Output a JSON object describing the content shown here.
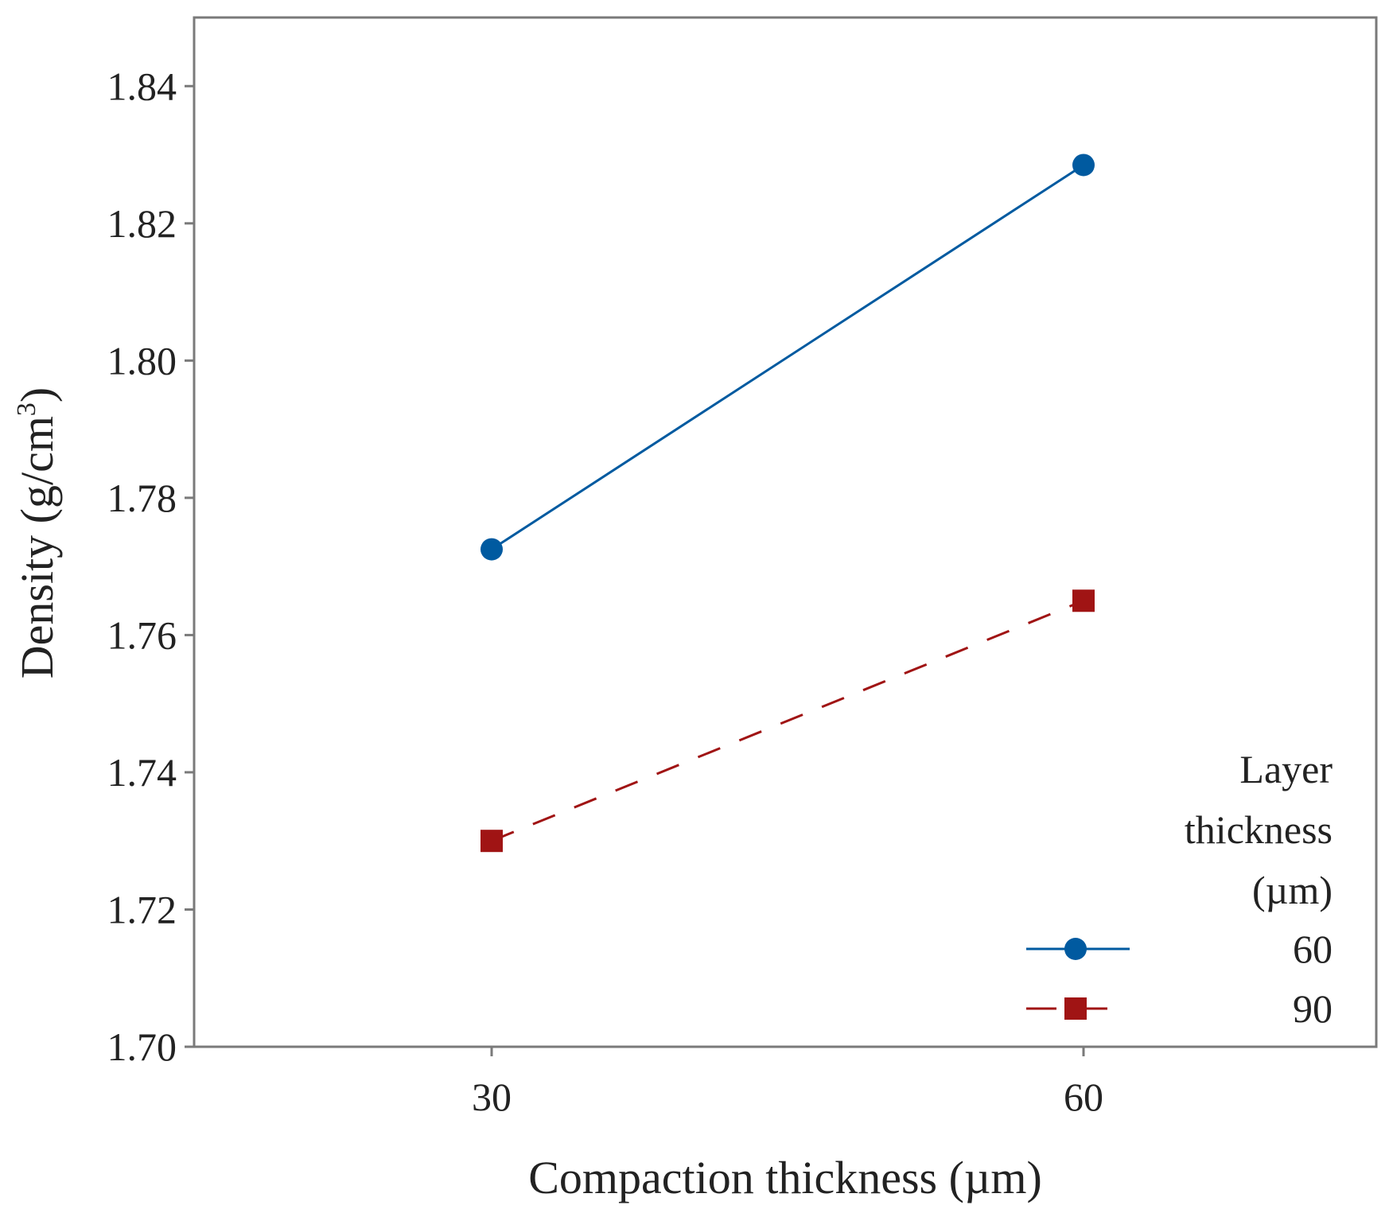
{
  "chart_data": {
    "type": "line",
    "title": "",
    "xlabel": "Compaction thickness (µm)",
    "ylabel_main": "Density (g/cm",
    "ylabel_sup": "3",
    "ylabel_close": ")",
    "categories": [
      "30",
      "60"
    ],
    "x": [
      30,
      60
    ],
    "yticks": [
      "1.70",
      "1.72",
      "1.74",
      "1.76",
      "1.78",
      "1.80",
      "1.82",
      "1.84"
    ],
    "ylim": [
      1.7,
      1.85
    ],
    "grid": false,
    "series": [
      {
        "name": "60",
        "values": [
          1.7725,
          1.8285
        ],
        "color": "#005aa0",
        "marker": "circle",
        "dash": "solid"
      },
      {
        "name": "90",
        "values": [
          1.73,
          1.765
        ],
        "color": "#a01414",
        "marker": "square",
        "dash": "dashed"
      }
    ],
    "legend": {
      "title_lines": [
        "Layer",
        "thickness",
        "(µm)"
      ],
      "position": "bottom-right"
    }
  }
}
